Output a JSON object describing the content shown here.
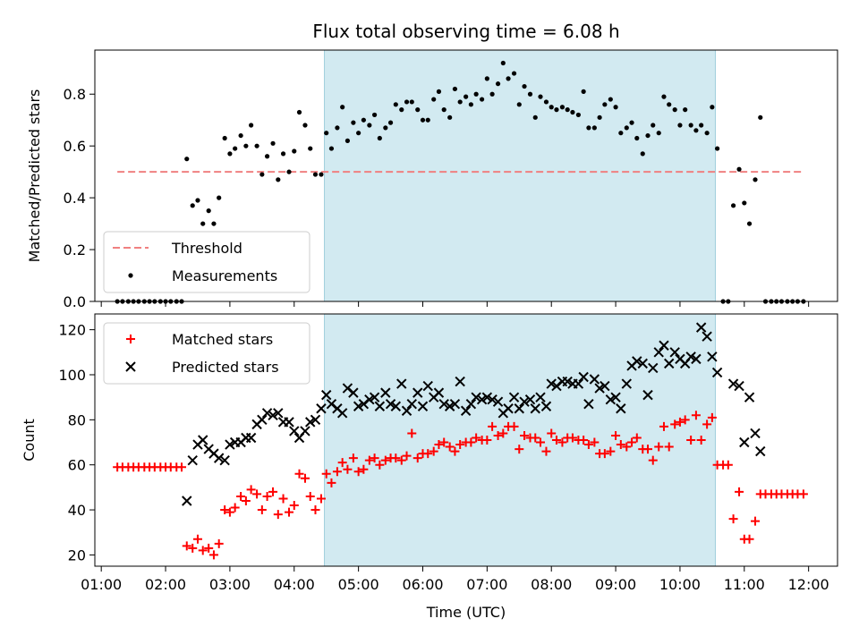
{
  "chart_data": [
    {
      "type": "scatter",
      "title": "Flux total observing time = 6.08 h",
      "xlabel": "",
      "ylabel": "Matched/Predicted stars",
      "ylim": [
        0,
        0.97
      ],
      "yticks": [
        0.0,
        0.2,
        0.4,
        0.6,
        0.8
      ],
      "ytick_labels": [
        "0.0",
        "0.2",
        "0.4",
        "0.6",
        "0.8"
      ],
      "xlim_hours": [
        0.9,
        12.45
      ],
      "shaded_region_hours": [
        4.47,
        10.55
      ],
      "shade_color": "#add8e6",
      "legend_position": "lower-left",
      "legend": [
        {
          "label": "Threshold",
          "marker": "dashed-line",
          "color": "#f08080"
        },
        {
          "label": "Measurements",
          "marker": "dot",
          "color": "#000000"
        }
      ],
      "series": [
        {
          "name": "Threshold",
          "style": "dashed",
          "color": "#f08080",
          "x_hours": [
            1.25,
            11.9
          ],
          "values": [
            0.5,
            0.5
          ]
        },
        {
          "name": "Measurements",
          "style": "dot",
          "color": "#000000",
          "x_hours": [
            1.25,
            1.33,
            1.42,
            1.5,
            1.58,
            1.67,
            1.75,
            1.83,
            1.92,
            2.0,
            2.08,
            2.17,
            2.25,
            2.33,
            2.42,
            2.5,
            2.58,
            2.67,
            2.75,
            2.83,
            2.92,
            3.0,
            3.08,
            3.17,
            3.25,
            3.33,
            3.42,
            3.5,
            3.58,
            3.67,
            3.75,
            3.83,
            3.92,
            4.0,
            4.08,
            4.17,
            4.25,
            4.33,
            4.42,
            4.5,
            4.58,
            4.67,
            4.75,
            4.83,
            4.92,
            5.0,
            5.08,
            5.17,
            5.25,
            5.33,
            5.42,
            5.5,
            5.58,
            5.67,
            5.75,
            5.83,
            5.92,
            6.0,
            6.08,
            6.17,
            6.25,
            6.33,
            6.42,
            6.5,
            6.58,
            6.67,
            6.75,
            6.83,
            6.92,
            7.0,
            7.08,
            7.17,
            7.25,
            7.33,
            7.42,
            7.5,
            7.58,
            7.67,
            7.75,
            7.83,
            7.92,
            8.0,
            8.08,
            8.17,
            8.25,
            8.33,
            8.42,
            8.5,
            8.58,
            8.67,
            8.75,
            8.83,
            8.92,
            9.0,
            9.08,
            9.17,
            9.25,
            9.33,
            9.42,
            9.5,
            9.58,
            9.67,
            9.75,
            9.83,
            9.92,
            10.0,
            10.08,
            10.17,
            10.25,
            10.33,
            10.42,
            10.5,
            10.58,
            10.67,
            10.75,
            10.83,
            10.92,
            11.0,
            11.08,
            11.17,
            11.25,
            11.33,
            11.42,
            11.5,
            11.58,
            11.67,
            11.75,
            11.83,
            11.92
          ],
          "values": [
            0,
            0,
            0,
            0,
            0,
            0,
            0,
            0,
            0,
            0,
            0,
            0,
            0,
            0.55,
            0.37,
            0.39,
            0.3,
            0.35,
            0.3,
            0.4,
            0.63,
            0.57,
            0.59,
            0.64,
            0.6,
            0.68,
            0.6,
            0.49,
            0.56,
            0.61,
            0.47,
            0.57,
            0.5,
            0.58,
            0.73,
            0.68,
            0.59,
            0.49,
            0.49,
            0.65,
            0.59,
            0.67,
            0.75,
            0.62,
            0.69,
            0.65,
            0.7,
            0.68,
            0.72,
            0.63,
            0.67,
            0.69,
            0.76,
            0.74,
            0.77,
            0.77,
            0.74,
            0.7,
            0.7,
            0.78,
            0.81,
            0.74,
            0.71,
            0.82,
            0.77,
            0.79,
            0.76,
            0.8,
            0.78,
            0.86,
            0.8,
            0.84,
            0.92,
            0.86,
            0.88,
            0.76,
            0.83,
            0.8,
            0.71,
            0.79,
            0.77,
            0.75,
            0.74,
            0.75,
            0.74,
            0.73,
            0.72,
            0.81,
            0.67,
            0.67,
            0.71,
            0.76,
            0.78,
            0.75,
            0.65,
            0.67,
            0.69,
            0.63,
            0.57,
            0.64,
            0.68,
            0.65,
            0.79,
            0.76,
            0.74,
            0.68,
            0.74,
            0.68,
            0.66,
            0.68,
            0.65,
            0.75,
            0.59,
            0,
            0,
            0.37,
            0.51,
            0.38,
            0.3,
            0.47,
            0.71,
            0,
            0,
            0,
            0,
            0,
            0,
            0,
            0
          ]
        }
      ]
    },
    {
      "type": "scatter",
      "title": "",
      "xlabel": "Time (UTC)",
      "ylabel": "Count",
      "ylim": [
        15,
        127
      ],
      "yticks": [
        20,
        40,
        60,
        80,
        100,
        120
      ],
      "ytick_labels": [
        "20",
        "40",
        "60",
        "80",
        "100",
        "120"
      ],
      "xlim_hours": [
        0.9,
        12.45
      ],
      "xticks_hours": [
        1,
        2,
        3,
        4,
        5,
        6,
        7,
        8,
        9,
        10,
        11,
        12
      ],
      "xtick_labels": [
        "01:00",
        "02:00",
        "03:00",
        "04:00",
        "05:00",
        "06:00",
        "07:00",
        "08:00",
        "09:00",
        "10:00",
        "11:00",
        "12:00"
      ],
      "shaded_region_hours": [
        4.47,
        10.55
      ],
      "shade_color": "#add8e6",
      "legend_position": "top-left",
      "legend": [
        {
          "label": "Matched stars",
          "marker": "plus",
          "color": "#ff0000"
        },
        {
          "label": "Predicted stars",
          "marker": "x",
          "color": "#000000"
        }
      ],
      "series": [
        {
          "name": "Matched stars",
          "marker": "plus",
          "color": "#ff0000",
          "x_hours": [
            1.25,
            1.33,
            1.42,
            1.5,
            1.58,
            1.67,
            1.75,
            1.83,
            1.92,
            2.0,
            2.08,
            2.17,
            2.25,
            2.33,
            2.42,
            2.5,
            2.58,
            2.67,
            2.75,
            2.83,
            2.92,
            3.0,
            3.08,
            3.17,
            3.25,
            3.33,
            3.42,
            3.5,
            3.58,
            3.67,
            3.75,
            3.83,
            3.92,
            4.0,
            4.08,
            4.17,
            4.25,
            4.33,
            4.42,
            4.5,
            4.58,
            4.67,
            4.75,
            4.83,
            4.92,
            5.0,
            5.08,
            5.17,
            5.25,
            5.33,
            5.42,
            5.5,
            5.58,
            5.67,
            5.75,
            5.83,
            5.92,
            6.0,
            6.08,
            6.17,
            6.25,
            6.33,
            6.42,
            6.5,
            6.58,
            6.67,
            6.75,
            6.83,
            6.92,
            7.0,
            7.08,
            7.17,
            7.25,
            7.33,
            7.42,
            7.5,
            7.58,
            7.67,
            7.75,
            7.83,
            7.92,
            8.0,
            8.08,
            8.17,
            8.25,
            8.33,
            8.42,
            8.5,
            8.58,
            8.67,
            8.75,
            8.83,
            8.92,
            9.0,
            9.08,
            9.17,
            9.25,
            9.33,
            9.42,
            9.5,
            9.58,
            9.67,
            9.75,
            9.83,
            9.92,
            10.0,
            10.08,
            10.17,
            10.25,
            10.33,
            10.42,
            10.5,
            10.58,
            10.67,
            10.75,
            10.83,
            10.92,
            11.0,
            11.08,
            11.17,
            11.25,
            11.33,
            11.42,
            11.5,
            11.58,
            11.67,
            11.75,
            11.83,
            11.92
          ],
          "values": [
            59,
            59,
            59,
            59,
            59,
            59,
            59,
            59,
            59,
            59,
            59,
            59,
            59,
            24,
            23,
            27,
            22,
            23,
            20,
            25,
            40,
            39,
            41,
            46,
            44,
            49,
            47,
            40,
            46,
            48,
            38,
            45,
            39,
            42,
            56,
            54,
            46,
            40,
            45,
            56,
            52,
            57,
            61,
            58,
            63,
            57,
            58,
            62,
            63,
            60,
            62,
            63,
            63,
            62,
            64,
            74,
            63,
            65,
            65,
            66,
            69,
            70,
            68,
            66,
            69,
            70,
            70,
            72,
            71,
            71,
            77,
            73,
            74,
            77,
            77,
            67,
            73,
            72,
            72,
            70,
            66,
            74,
            71,
            70,
            72,
            72,
            71,
            71,
            69,
            70,
            65,
            65,
            66,
            73,
            69,
            68,
            70,
            72,
            67,
            67,
            62,
            68,
            77,
            68,
            78,
            79,
            80,
            71,
            82,
            71,
            78,
            81,
            60,
            60,
            60,
            36,
            48,
            27,
            27,
            35,
            47,
            47,
            47,
            47,
            47,
            47,
            47,
            47,
            47
          ]
        },
        {
          "name": "Predicted stars",
          "marker": "x",
          "color": "#000000",
          "x_hours": [
            2.33,
            2.42,
            2.5,
            2.58,
            2.67,
            2.75,
            2.83,
            2.92,
            3.0,
            3.08,
            3.17,
            3.25,
            3.33,
            3.42,
            3.5,
            3.58,
            3.67,
            3.75,
            3.83,
            3.92,
            4.0,
            4.08,
            4.17,
            4.25,
            4.33,
            4.42,
            4.5,
            4.58,
            4.67,
            4.75,
            4.83,
            4.92,
            5.0,
            5.08,
            5.17,
            5.25,
            5.33,
            5.42,
            5.5,
            5.58,
            5.67,
            5.75,
            5.83,
            5.92,
            6.0,
            6.08,
            6.17,
            6.25,
            6.33,
            6.42,
            6.5,
            6.58,
            6.67,
            6.75,
            6.83,
            6.92,
            7.0,
            7.08,
            7.17,
            7.25,
            7.33,
            7.42,
            7.5,
            7.58,
            7.67,
            7.75,
            7.83,
            7.92,
            8.0,
            8.08,
            8.17,
            8.25,
            8.33,
            8.42,
            8.5,
            8.58,
            8.67,
            8.75,
            8.83,
            8.92,
            9.0,
            9.08,
            9.17,
            9.25,
            9.33,
            9.42,
            9.5,
            9.58,
            9.67,
            9.75,
            9.83,
            9.92,
            10.0,
            10.08,
            10.17,
            10.25,
            10.33,
            10.42,
            10.5,
            10.58,
            10.83,
            10.92,
            11.0,
            11.08,
            11.17,
            11.25
          ],
          "values": [
            44,
            62,
            69,
            71,
            67,
            65,
            63,
            62,
            69,
            70,
            70,
            72,
            72,
            78,
            80,
            83,
            82,
            83,
            79,
            79,
            75,
            72,
            75,
            79,
            80,
            85,
            91,
            87,
            85,
            83,
            94,
            92,
            86,
            87,
            89,
            90,
            86,
            92,
            87,
            86,
            96,
            84,
            87,
            92,
            86,
            95,
            90,
            92,
            87,
            86,
            87,
            97,
            84,
            87,
            90,
            89,
            90,
            89,
            88,
            83,
            85,
            90,
            85,
            88,
            89,
            85,
            90,
            86,
            96,
            95,
            97,
            97,
            96,
            96,
            99,
            87,
            98,
            94,
            95,
            89,
            90,
            85,
            96,
            104,
            106,
            105,
            91,
            103,
            110,
            113,
            105,
            110,
            107,
            105,
            108,
            107,
            121,
            117,
            108,
            101,
            96,
            95,
            70,
            90,
            74,
            66
          ]
        }
      ]
    }
  ]
}
